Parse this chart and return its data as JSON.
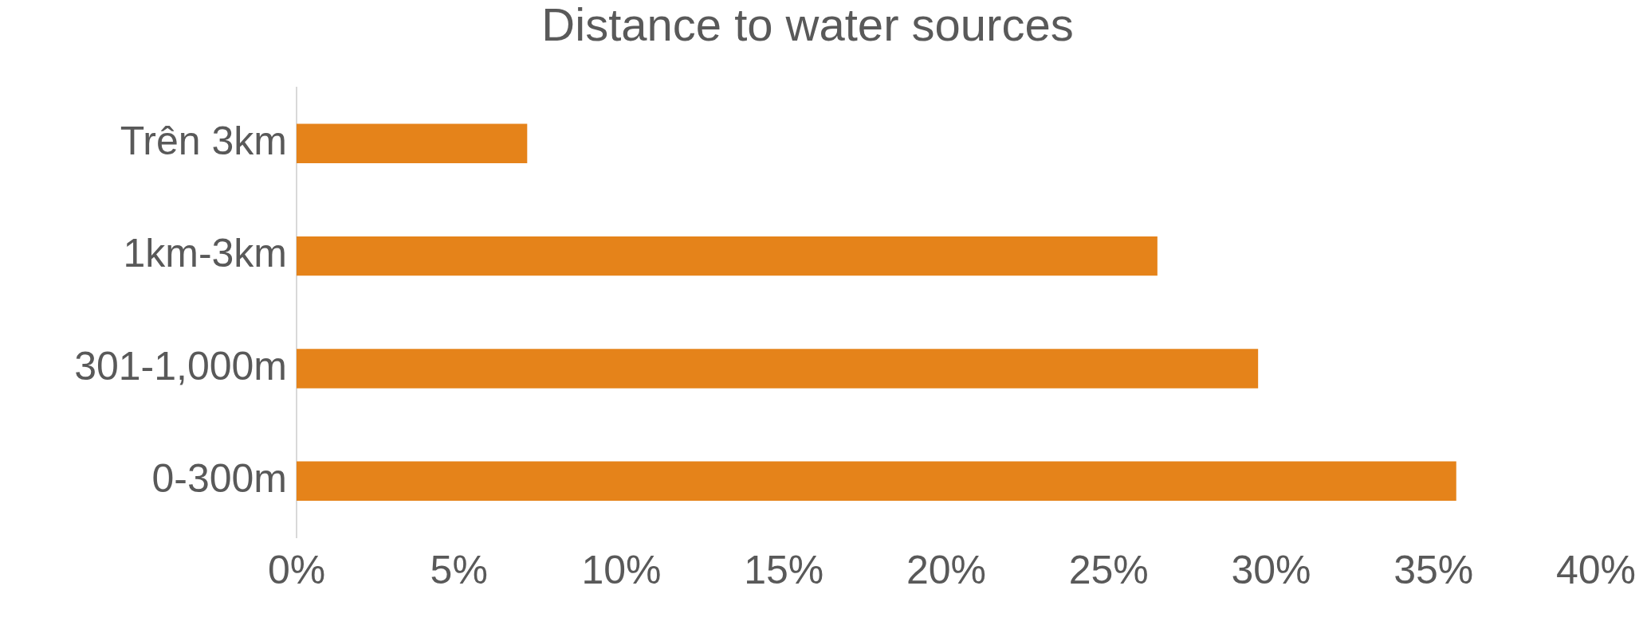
{
  "chart_data": {
    "type": "bar",
    "orientation": "horizontal",
    "title": "Distance to water sources",
    "categories": [
      "Trên 3km",
      "1km-3km",
      "301-1,000m",
      "0-300m"
    ],
    "values": [
      7.1,
      26.5,
      29.6,
      35.7
    ],
    "color": "#e5831a",
    "xlim": [
      0,
      40
    ],
    "xticks": [
      {
        "value": 0,
        "label": "0%"
      },
      {
        "value": 5,
        "label": "5%"
      },
      {
        "value": 10,
        "label": "10%"
      },
      {
        "value": 15,
        "label": "15%"
      },
      {
        "value": 20,
        "label": "20%"
      },
      {
        "value": 25,
        "label": "25%"
      },
      {
        "value": 30,
        "label": "30%"
      },
      {
        "value": 35,
        "label": "35%"
      },
      {
        "value": 40,
        "label": "40%"
      }
    ],
    "grid": false,
    "legend": false
  }
}
